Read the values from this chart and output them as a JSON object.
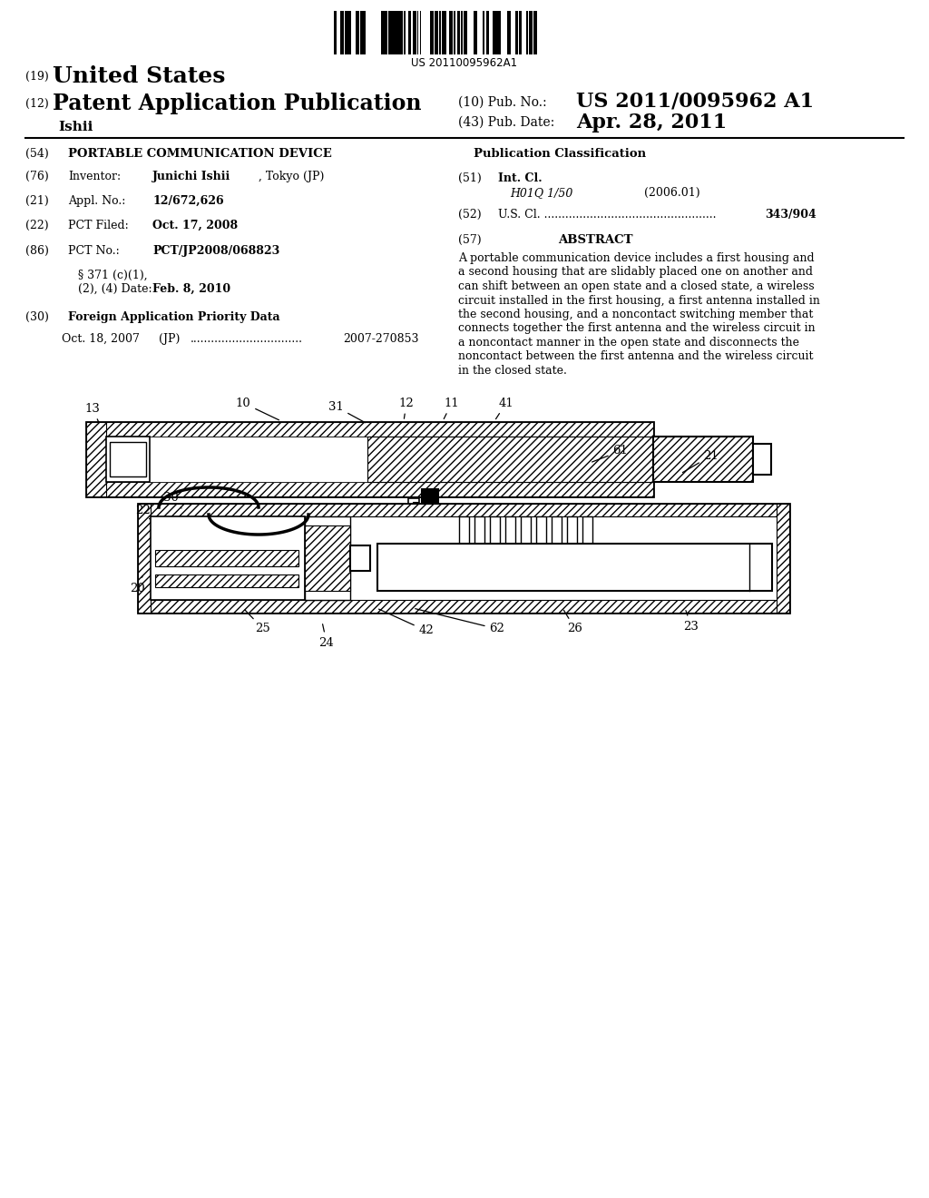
{
  "background_color": "#ffffff",
  "barcode_text": "US 20110095962A1",
  "pub_no_value": "US 2011/0095962 A1",
  "pub_date_value": "Apr. 28, 2011",
  "abstract_lines": [
    "A portable communication device includes a first housing and",
    "a second housing that are slidably placed one on another and",
    "can shift between an open state and a closed state, a wireless",
    "circuit installed in the first housing, a first antenna installed in",
    "the second housing, and a noncontact switching member that",
    "connects together the first antenna and the wireless circuit in",
    "a noncontact manner in the open state and disconnects the",
    "noncontact between the first antenna and the wireless circuit",
    "in the closed state."
  ]
}
